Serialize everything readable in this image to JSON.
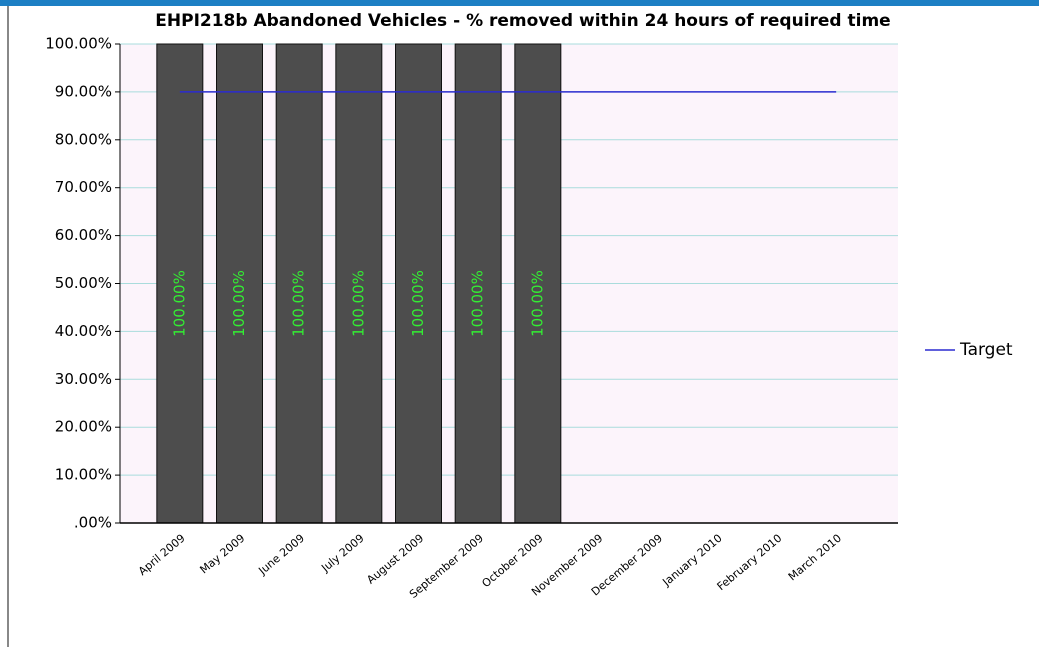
{
  "chart_data": {
    "type": "bar",
    "title": "EHPI218b Abandoned Vehicles - % removed within 24 hours of required time",
    "categories": [
      "April 2009",
      "May 2009",
      "June 2009",
      "July 2009",
      "August 2009",
      "September 2009",
      "October 2009",
      "November 2009",
      "December 2009",
      "January 2010",
      "February 2010",
      "March 2010"
    ],
    "series": [
      {
        "type": "bar",
        "color": "#4d4d4d",
        "values": [
          100,
          100,
          100,
          100,
          100,
          100,
          100,
          null,
          null,
          null,
          null,
          null
        ],
        "value_labels": [
          "100.00%",
          "100.00%",
          "100.00%",
          "100.00%",
          "100.00%",
          "100.00%",
          "100.00%",
          null,
          null,
          null,
          null,
          null
        ],
        "label_color": "#33ee33"
      },
      {
        "type": "line",
        "name": "Target",
        "color": "#2b2bd0",
        "values": [
          90,
          90,
          90,
          90,
          90,
          90,
          90,
          90,
          90,
          90,
          90,
          90
        ]
      }
    ],
    "ylim": [
      0,
      100
    ],
    "yticks": [
      {
        "value": 0,
        "label": ".00%"
      },
      {
        "value": 10,
        "label": "10.00%"
      },
      {
        "value": 20,
        "label": "20.00%"
      },
      {
        "value": 30,
        "label": "30.00%"
      },
      {
        "value": 40,
        "label": "40.00%"
      },
      {
        "value": 50,
        "label": "50.00%"
      },
      {
        "value": 60,
        "label": "60.00%"
      },
      {
        "value": 70,
        "label": "70.00%"
      },
      {
        "value": 80,
        "label": "80.00%"
      },
      {
        "value": 90,
        "label": "90.00%"
      },
      {
        "value": 100,
        "label": "100.00%"
      }
    ],
    "grid": true,
    "legend": "right"
  }
}
